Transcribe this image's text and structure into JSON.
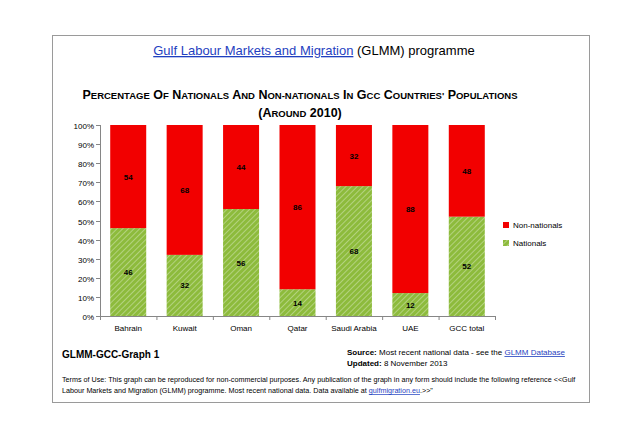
{
  "header": {
    "title_link": "Gulf Labour Markets and Migration",
    "title_rest": " (GLMM) programme"
  },
  "chart_data": {
    "type": "bar",
    "stacked": true,
    "data_labels": true,
    "grid": false,
    "legend": "right",
    "title": "PERCENTAGE OF NATIONALS AND NON-NATIONALS IN GCC COUNTRIES' POPULATIONS",
    "subtitle": "(AROUND 2010)",
    "categories": [
      "Bahrain",
      "Kuwait",
      "Oman",
      "Qatar",
      "Saudi Arabia",
      "UAE",
      "GCC total"
    ],
    "series": [
      {
        "name": "Nationals",
        "color": "#8dbb3c",
        "values": [
          46,
          32,
          56,
          14,
          68,
          12,
          52
        ]
      },
      {
        "name": "Non-nationals",
        "color": "#f20000",
        "values": [
          54,
          68,
          44,
          86,
          32,
          88,
          48
        ]
      }
    ],
    "ylim": [
      0,
      100
    ],
    "yticks": [
      {
        "value": 0,
        "label": "0%"
      },
      {
        "value": 10,
        "label": "10%"
      },
      {
        "value": 20,
        "label": "20%"
      },
      {
        "value": 30,
        "label": "30%"
      },
      {
        "value": 40,
        "label": "40%"
      },
      {
        "value": 50,
        "label": "50%"
      },
      {
        "value": 60,
        "label": "60%"
      },
      {
        "value": 70,
        "label": "70%"
      },
      {
        "value": 80,
        "label": "80%"
      },
      {
        "value": 90,
        "label": "90%"
      },
      {
        "value": 100,
        "label": "100%"
      }
    ]
  },
  "footer": {
    "graph_id": "GLMM-GCC-Graph 1",
    "source_label": "Source:",
    "source_text": " Most recent national data - see the ",
    "source_link": "GLMM Database",
    "updated_label": "Updated:",
    "updated_text": " 8 November 2013",
    "terms": [
      "Terms of Use: This graph can be reproduced for non-commercial purposes. Any publication of the graph in any form should include the following reference <<Gulf",
      "Labour Markets and Migration (GLMM) programme. Most recent national data. Data available at "
    ],
    "terms_link": "gulfmigration.eu",
    "terms_end": ".>>\""
  }
}
